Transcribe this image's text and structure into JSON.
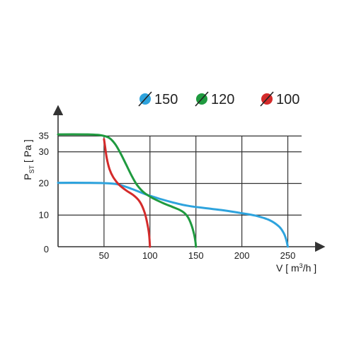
{
  "chart_data": {
    "type": "line",
    "title": "",
    "xlabel": "V [ m³/h ]",
    "ylabel": "PST [ Pa ]",
    "xlabel_parts": {
      "main": "V [ m",
      "sup": "3",
      "rest": "/h ]"
    },
    "ylabel_parts": {
      "main": "P",
      "sub": "ST",
      "rest": " [ Pa ]"
    },
    "xlim": [
      0,
      265
    ],
    "ylim": [
      0,
      40
    ],
    "x_ticks": [
      {
        "v": 50,
        "label": "50"
      },
      {
        "v": 100,
        "label": "100"
      },
      {
        "v": 150,
        "label": "150"
      },
      {
        "v": 200,
        "label": "200"
      },
      {
        "v": 250,
        "label": "250"
      }
    ],
    "y_ticks": [
      {
        "v": 0,
        "label": "0"
      },
      {
        "v": 10,
        "label": "10"
      },
      {
        "v": 20,
        "label": "20"
      },
      {
        "v": 30,
        "label": "30"
      },
      {
        "v": 35,
        "label": "35"
      }
    ],
    "grid": true,
    "legend_position": "top-right",
    "series": [
      {
        "name": "150",
        "color": "#2ea3dd",
        "points": [
          [
            0,
            20.2
          ],
          [
            30,
            20.2
          ],
          [
            50,
            20.1
          ],
          [
            65,
            19.7
          ],
          [
            80,
            18.3
          ],
          [
            95,
            16.6
          ],
          [
            110,
            15.2
          ],
          [
            125,
            14.0
          ],
          [
            140,
            13.0
          ],
          [
            160,
            12.2
          ],
          [
            180,
            11.5
          ],
          [
            200,
            10.6
          ],
          [
            215,
            9.8
          ],
          [
            230,
            8.4
          ],
          [
            240,
            6.5
          ],
          [
            245,
            4.6
          ],
          [
            248,
            2.5
          ],
          [
            250,
            0
          ]
        ]
      },
      {
        "name": "120",
        "color": "#1f9a3f",
        "points": [
          [
            0,
            35.5
          ],
          [
            30,
            35.5
          ],
          [
            45,
            35.3
          ],
          [
            55,
            34.5
          ],
          [
            62,
            32.5
          ],
          [
            68,
            29.5
          ],
          [
            74,
            26.0
          ],
          [
            80,
            22.5
          ],
          [
            86,
            19.5
          ],
          [
            94,
            17.0
          ],
          [
            104,
            15.2
          ],
          [
            115,
            13.7
          ],
          [
            126,
            12.4
          ],
          [
            135,
            11.2
          ],
          [
            141,
            9.5
          ],
          [
            145,
            7.0
          ],
          [
            148,
            4.0
          ],
          [
            149.5,
            1.5
          ],
          [
            150,
            0
          ]
        ]
      },
      {
        "name": "100",
        "color": "#d42b2b",
        "points": [
          [
            50,
            34.0
          ],
          [
            51,
            32.0
          ],
          [
            53,
            28.0
          ],
          [
            56,
            24.5
          ],
          [
            60,
            22.0
          ],
          [
            66,
            19.7
          ],
          [
            74,
            17.8
          ],
          [
            82,
            16.3
          ],
          [
            89,
            14.2
          ],
          [
            94,
            11.0
          ],
          [
            97,
            7.5
          ],
          [
            99,
            4.0
          ],
          [
            100,
            0
          ]
        ]
      }
    ]
  }
}
